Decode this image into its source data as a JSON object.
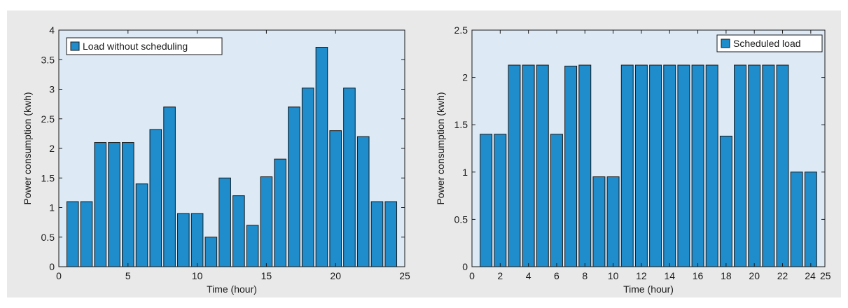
{
  "colors": {
    "panel_background": "#e9e9e9",
    "plot_background": "#dde9f5",
    "bar_fill": "#1f8ccc",
    "bar_stroke": "#1a1a1a",
    "axis": "#1a1a1a"
  },
  "chart_data": [
    {
      "type": "bar",
      "x": [
        1,
        2,
        3,
        4,
        5,
        6,
        7,
        8,
        9,
        10,
        11,
        12,
        13,
        14,
        15,
        16,
        17,
        18,
        19,
        20,
        21,
        22,
        23,
        24
      ],
      "series": [
        {
          "name": "Load without scheduling",
          "values": [
            1.1,
            1.1,
            2.1,
            2.1,
            2.1,
            1.4,
            2.32,
            2.7,
            0.9,
            0.9,
            0.5,
            1.5,
            1.2,
            0.7,
            1.52,
            1.82,
            2.7,
            3.02,
            3.71,
            2.3,
            3.02,
            2.2,
            1.1,
            1.1
          ]
        }
      ],
      "xlabel": "Time (hour)",
      "ylabel": "Power consumption (kwh)",
      "xlim": [
        0,
        25
      ],
      "ylim": [
        0,
        4
      ],
      "xticks": [
        0,
        5,
        10,
        15,
        20,
        25
      ],
      "yticks": [
        0,
        0.5,
        1,
        1.5,
        2,
        2.5,
        3,
        3.5,
        4
      ],
      "xtick_labels": [
        "0",
        "5",
        "10",
        "15",
        "20",
        "25"
      ],
      "ytick_labels": [
        "0",
        "0.5",
        "1",
        "1.5",
        "2",
        "2.5",
        "3",
        "3.5",
        "4"
      ],
      "legend": "top-left",
      "grid": false
    },
    {
      "type": "bar",
      "x": [
        1,
        2,
        3,
        4,
        5,
        6,
        7,
        8,
        9,
        10,
        11,
        12,
        13,
        14,
        15,
        16,
        17,
        18,
        19,
        20,
        21,
        22,
        23,
        24
      ],
      "series": [
        {
          "name": "Scheduled load",
          "values": [
            1.4,
            1.4,
            2.13,
            2.13,
            2.13,
            1.4,
            2.12,
            2.13,
            0.95,
            0.95,
            2.13,
            2.13,
            2.13,
            2.13,
            2.13,
            2.13,
            2.13,
            1.38,
            2.13,
            2.13,
            2.13,
            2.13,
            1.0,
            1.0
          ]
        }
      ],
      "xlabel": "Time (hour)",
      "ylabel": "Power consumption (kwh)",
      "xlim": [
        0,
        25
      ],
      "ylim": [
        0,
        2.5
      ],
      "xticks": [
        0,
        2,
        4,
        6,
        8,
        10,
        12,
        14,
        16,
        18,
        20,
        22,
        24,
        25
      ],
      "yticks": [
        0,
        0.5,
        1,
        1.5,
        2,
        2.5
      ],
      "xtick_labels": [
        "0",
        "2",
        "4",
        "6",
        "8",
        "10",
        "12",
        "14",
        "16",
        "18",
        "20",
        "22",
        "24",
        "25"
      ],
      "ytick_labels": [
        "0",
        "0.5",
        "1",
        "1.5",
        "2",
        "2.5"
      ],
      "legend": "top-right",
      "grid": false
    }
  ]
}
